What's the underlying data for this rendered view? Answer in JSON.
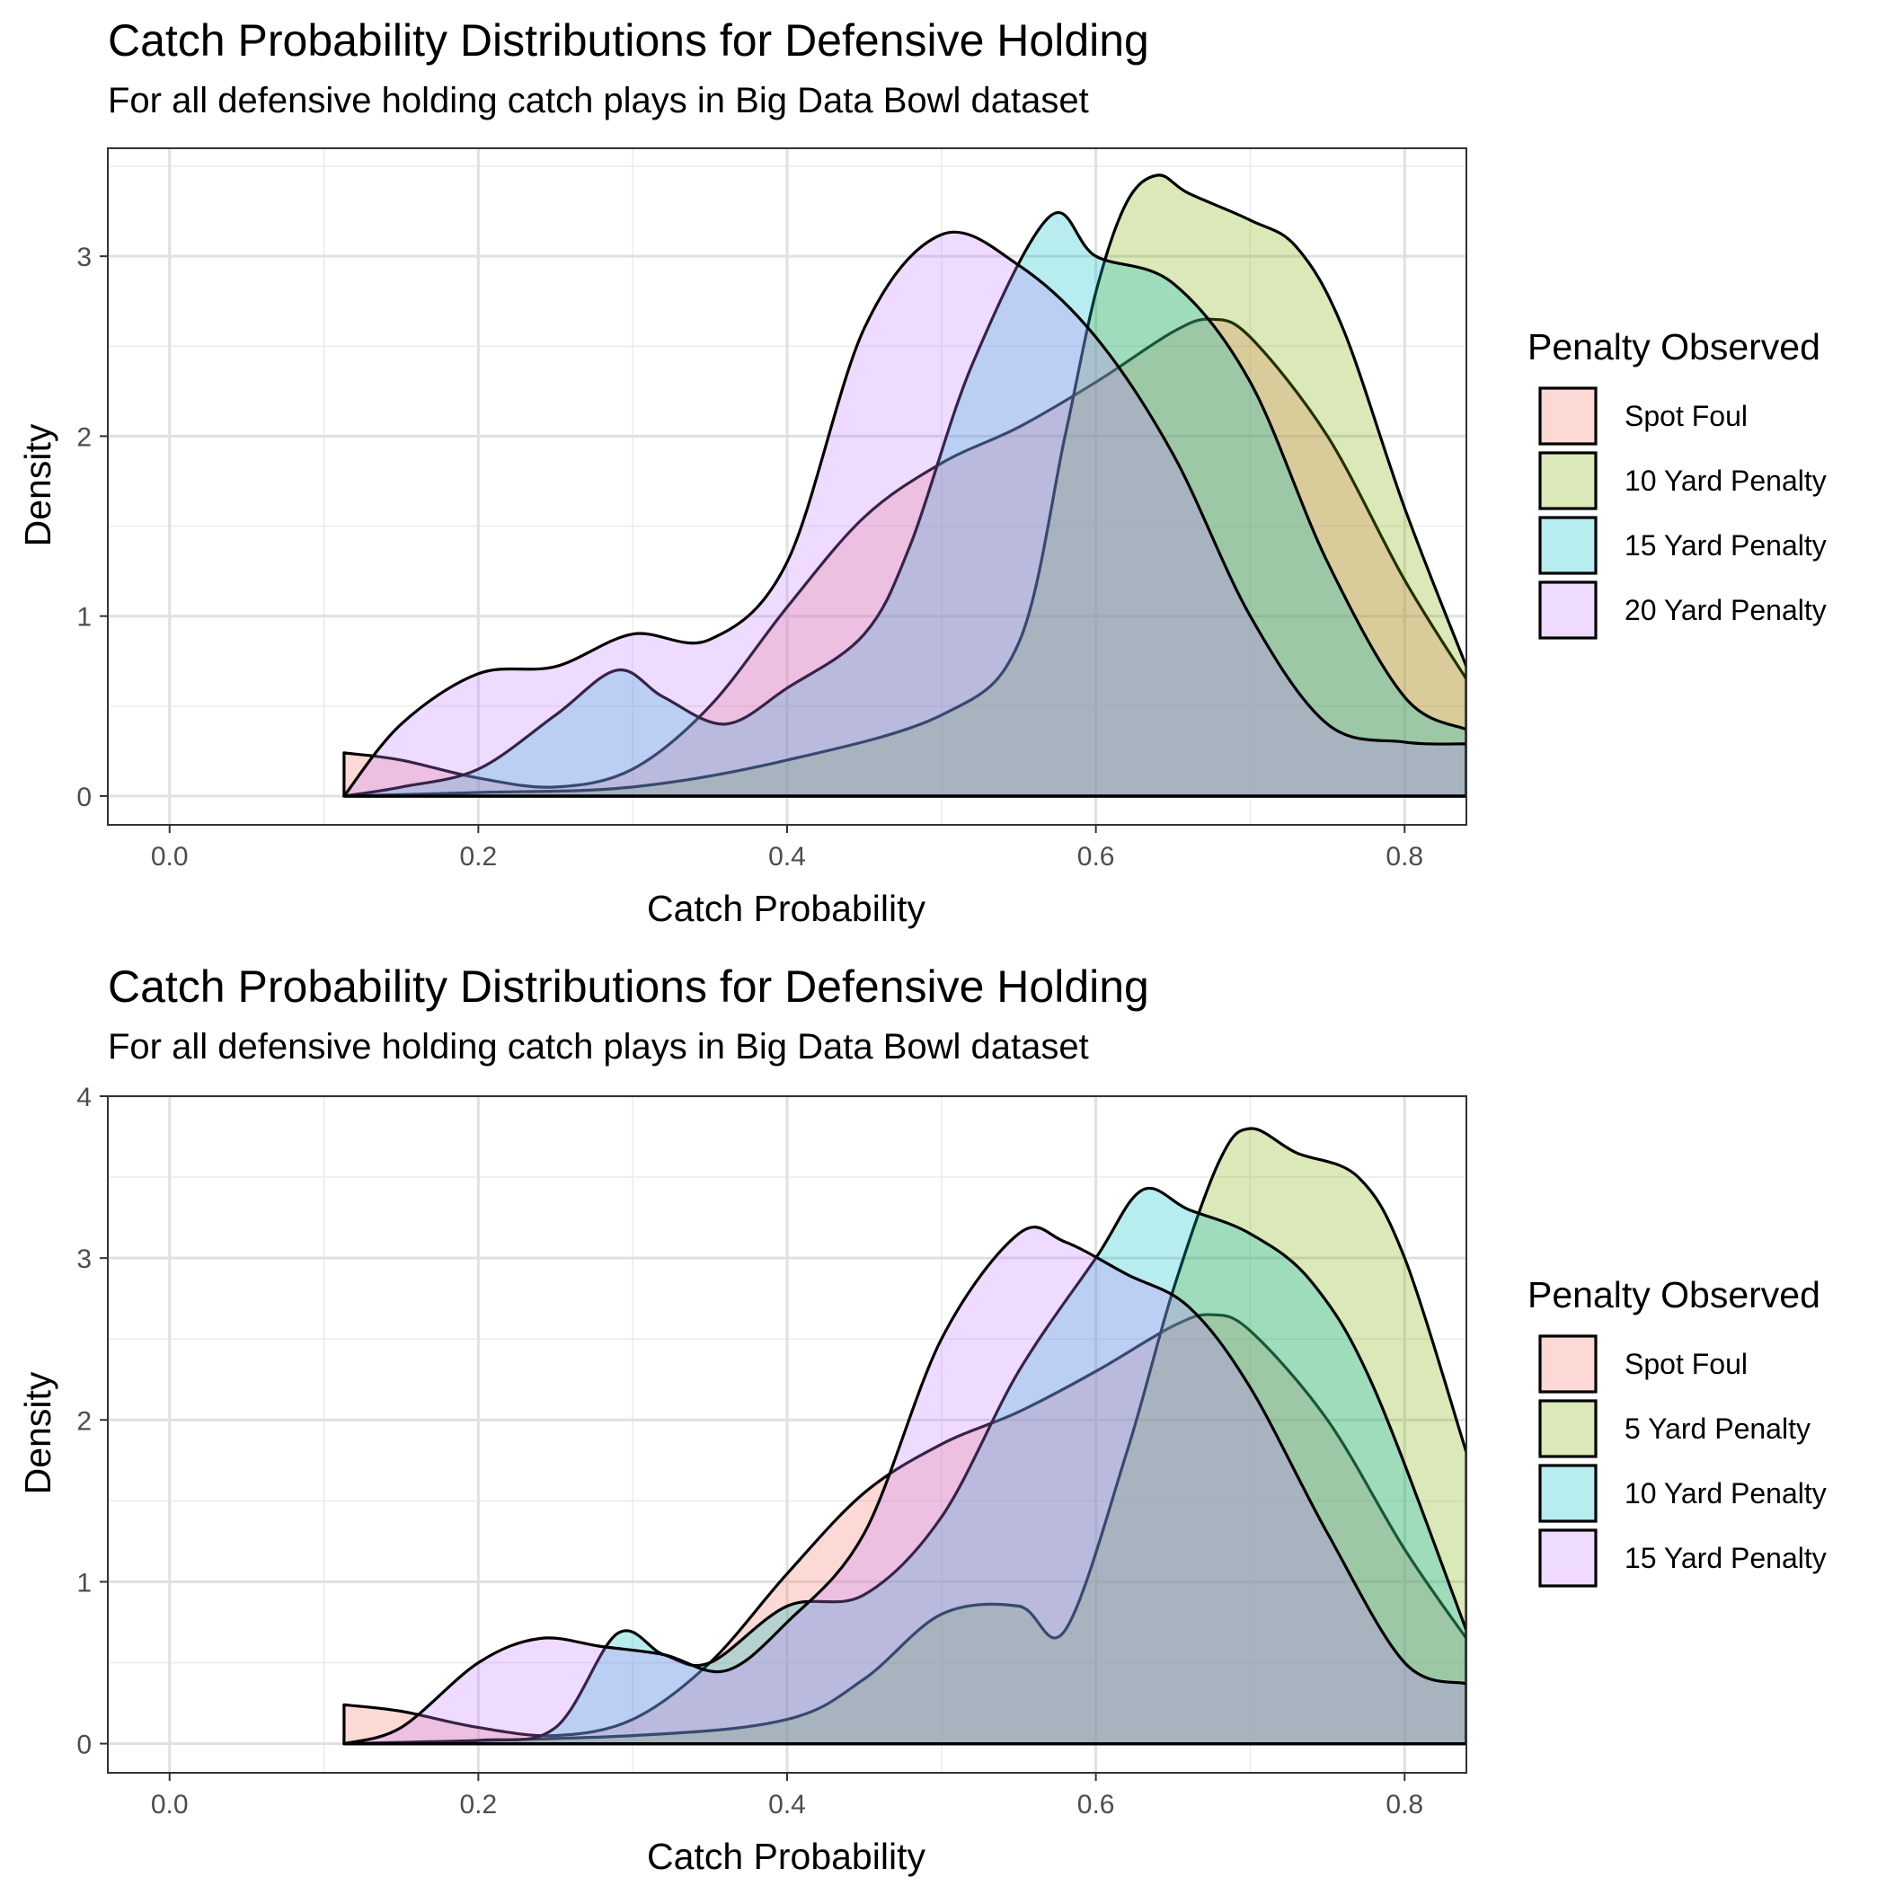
{
  "chart_data": [
    {
      "type": "area",
      "title": "Catch Probability Distributions for Defensive Holding",
      "subtitle": "For all defensive holding catch plays in Big Data Bowl dataset",
      "xlabel": "Catch Probability",
      "ylabel": "Density",
      "xlim": [
        -0.04,
        0.84
      ],
      "ylim": [
        -0.16,
        3.6
      ],
      "x_ticks": [
        "0.0",
        "0.2",
        "0.4",
        "0.6",
        "0.8"
      ],
      "y_ticks": [
        "0",
        "1",
        "2",
        "3"
      ],
      "legend_title": "Penalty Observed",
      "legend_position": "right",
      "grid": true,
      "series": [
        {
          "name": "Spot Foul",
          "color": "#F8766D",
          "points": [
            [
              0.113,
              0.24
            ],
            [
              0.15,
              0.2
            ],
            [
              0.2,
              0.1
            ],
            [
              0.25,
              0.05
            ],
            [
              0.3,
              0.15
            ],
            [
              0.35,
              0.5
            ],
            [
              0.4,
              1.05
            ],
            [
              0.45,
              1.55
            ],
            [
              0.5,
              1.85
            ],
            [
              0.55,
              2.05
            ],
            [
              0.6,
              2.3
            ],
            [
              0.65,
              2.58
            ],
            [
              0.675,
              2.65
            ],
            [
              0.7,
              2.55
            ],
            [
              0.75,
              2.0
            ],
            [
              0.8,
              1.2
            ],
            [
              0.84,
              0.65
            ]
          ]
        },
        {
          "name": "10 Yard Penalty",
          "color": "#7CAE00",
          "points": [
            [
              0.113,
              0.0
            ],
            [
              0.2,
              0.02
            ],
            [
              0.3,
              0.05
            ],
            [
              0.4,
              0.2
            ],
            [
              0.5,
              0.45
            ],
            [
              0.55,
              0.85
            ],
            [
              0.58,
              2.0
            ],
            [
              0.6,
              2.8
            ],
            [
              0.62,
              3.3
            ],
            [
              0.64,
              3.45
            ],
            [
              0.66,
              3.35
            ],
            [
              0.7,
              3.2
            ],
            [
              0.73,
              3.05
            ],
            [
              0.76,
              2.6
            ],
            [
              0.8,
              1.6
            ],
            [
              0.84,
              0.72
            ]
          ]
        },
        {
          "name": "15 Yard Penalty",
          "color": "#00BFC4",
          "points": [
            [
              0.113,
              0.0
            ],
            [
              0.15,
              0.05
            ],
            [
              0.2,
              0.15
            ],
            [
              0.25,
              0.45
            ],
            [
              0.29,
              0.7
            ],
            [
              0.32,
              0.55
            ],
            [
              0.36,
              0.4
            ],
            [
              0.4,
              0.6
            ],
            [
              0.45,
              0.9
            ],
            [
              0.48,
              1.4
            ],
            [
              0.52,
              2.4
            ],
            [
              0.57,
              3.22
            ],
            [
              0.6,
              3.0
            ],
            [
              0.65,
              2.85
            ],
            [
              0.7,
              2.3
            ],
            [
              0.75,
              1.3
            ],
            [
              0.8,
              0.55
            ],
            [
              0.84,
              0.37
            ]
          ]
        },
        {
          "name": "20 Yard Penalty",
          "color": "#C77CFF",
          "points": [
            [
              0.113,
              0.0
            ],
            [
              0.15,
              0.4
            ],
            [
              0.2,
              0.68
            ],
            [
              0.25,
              0.72
            ],
            [
              0.3,
              0.9
            ],
            [
              0.35,
              0.87
            ],
            [
              0.4,
              1.3
            ],
            [
              0.45,
              2.6
            ],
            [
              0.5,
              3.12
            ],
            [
              0.55,
              2.95
            ],
            [
              0.6,
              2.55
            ],
            [
              0.65,
              1.9
            ],
            [
              0.7,
              1.0
            ],
            [
              0.75,
              0.4
            ],
            [
              0.8,
              0.3
            ],
            [
              0.84,
              0.29
            ]
          ]
        }
      ]
    },
    {
      "type": "area",
      "title": "Catch Probability Distributions for Defensive Holding",
      "subtitle": "For all defensive holding catch plays in Big Data Bowl dataset",
      "xlabel": "Catch Probability",
      "ylabel": "Density",
      "xlim": [
        -0.04,
        0.84
      ],
      "ylim": [
        -0.18,
        4.0
      ],
      "x_ticks": [
        "0.0",
        "0.2",
        "0.4",
        "0.6",
        "0.8"
      ],
      "y_ticks": [
        "0",
        "1",
        "2",
        "3",
        "4"
      ],
      "legend_title": "Penalty Observed",
      "legend_position": "right",
      "grid": true,
      "series": [
        {
          "name": "Spot Foul",
          "color": "#F8766D",
          "points": [
            [
              0.113,
              0.24
            ],
            [
              0.15,
              0.2
            ],
            [
              0.2,
              0.1
            ],
            [
              0.25,
              0.05
            ],
            [
              0.3,
              0.15
            ],
            [
              0.35,
              0.5
            ],
            [
              0.4,
              1.05
            ],
            [
              0.45,
              1.55
            ],
            [
              0.5,
              1.85
            ],
            [
              0.55,
              2.05
            ],
            [
              0.6,
              2.3
            ],
            [
              0.65,
              2.58
            ],
            [
              0.675,
              2.65
            ],
            [
              0.7,
              2.55
            ],
            [
              0.75,
              2.0
            ],
            [
              0.8,
              1.2
            ],
            [
              0.84,
              0.65
            ]
          ]
        },
        {
          "name": "5 Yard Penalty",
          "color": "#7CAE00",
          "points": [
            [
              0.113,
              0.0
            ],
            [
              0.3,
              0.05
            ],
            [
              0.4,
              0.15
            ],
            [
              0.45,
              0.4
            ],
            [
              0.5,
              0.8
            ],
            [
              0.55,
              0.85
            ],
            [
              0.58,
              0.7
            ],
            [
              0.62,
              1.8
            ],
            [
              0.65,
              2.8
            ],
            [
              0.68,
              3.6
            ],
            [
              0.7,
              3.8
            ],
            [
              0.73,
              3.65
            ],
            [
              0.77,
              3.5
            ],
            [
              0.8,
              3.0
            ],
            [
              0.84,
              1.8
            ]
          ]
        },
        {
          "name": "10 Yard Penalty",
          "color": "#00BFC4",
          "points": [
            [
              0.113,
              0.0
            ],
            [
              0.2,
              0.02
            ],
            [
              0.25,
              0.1
            ],
            [
              0.29,
              0.68
            ],
            [
              0.32,
              0.55
            ],
            [
              0.35,
              0.5
            ],
            [
              0.4,
              0.85
            ],
            [
              0.45,
              0.92
            ],
            [
              0.5,
              1.4
            ],
            [
              0.55,
              2.3
            ],
            [
              0.6,
              3.0
            ],
            [
              0.63,
              3.42
            ],
            [
              0.66,
              3.3
            ],
            [
              0.7,
              3.15
            ],
            [
              0.74,
              2.85
            ],
            [
              0.78,
              2.2
            ],
            [
              0.84,
              0.7
            ]
          ]
        },
        {
          "name": "15 Yard Penalty",
          "color": "#C77CFF",
          "points": [
            [
              0.113,
              0.0
            ],
            [
              0.15,
              0.1
            ],
            [
              0.2,
              0.5
            ],
            [
              0.24,
              0.65
            ],
            [
              0.28,
              0.6
            ],
            [
              0.32,
              0.55
            ],
            [
              0.36,
              0.45
            ],
            [
              0.4,
              0.75
            ],
            [
              0.45,
              1.3
            ],
            [
              0.5,
              2.5
            ],
            [
              0.55,
              3.15
            ],
            [
              0.58,
              3.1
            ],
            [
              0.62,
              2.9
            ],
            [
              0.66,
              2.7
            ],
            [
              0.7,
              2.2
            ],
            [
              0.75,
              1.3
            ],
            [
              0.8,
              0.5
            ],
            [
              0.84,
              0.37
            ]
          ]
        }
      ]
    }
  ]
}
